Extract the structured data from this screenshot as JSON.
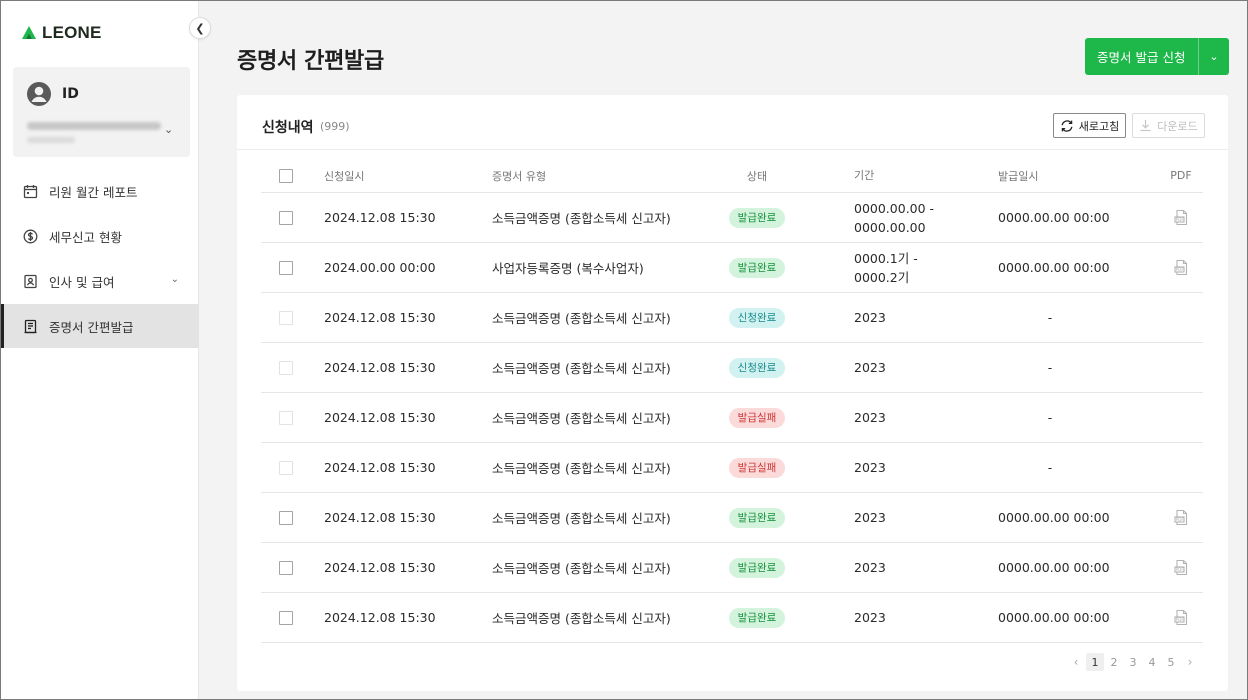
{
  "brand": {
    "name": "LEONE",
    "color": "#1eb74a"
  },
  "user": {
    "id_label": "ID"
  },
  "sidebar": {
    "items": [
      {
        "label": "리원 월간 레포트",
        "icon": "calendar-icon",
        "active": false
      },
      {
        "label": "세무신고 현황",
        "icon": "dollar-circle-icon",
        "active": false
      },
      {
        "label": "인사 및 급여",
        "icon": "id-card-icon",
        "active": false,
        "expandable": true
      },
      {
        "label": "증명서 간편발급",
        "icon": "document-icon",
        "active": true
      }
    ]
  },
  "page": {
    "title": "증명서 간편발급",
    "apply_button": "증명서 발급 신청"
  },
  "card": {
    "title": "신청내역",
    "count": "(999)",
    "refresh_label": "새로고침",
    "download_label": "다운로드"
  },
  "table": {
    "headers": {
      "date": "신청일시",
      "type": "증명서 유형",
      "status": "상태",
      "period": "기간",
      "issued": "발급일시",
      "pdf": "PDF"
    },
    "rows": [
      {
        "date": "2024.12.08 15:30",
        "type": "소득금액증명 (종합소득세 신고자)",
        "status": "발급완료",
        "status_kind": "done",
        "period_1": "0000.00.00 -",
        "period_2": "0000.00.00",
        "issued": "0000.00.00 00:00",
        "pdf": true,
        "checkable": true
      },
      {
        "date": "2024.00.00 00:00",
        "type": "사업자등록증명 (복수사업자)",
        "status": "발급완료",
        "status_kind": "done",
        "period_1": "0000.1기 -",
        "period_2": "0000.2기",
        "issued": "0000.00.00 00:00",
        "pdf": true,
        "checkable": true
      },
      {
        "date": "2024.12.08 15:30",
        "type": "소득금액증명 (종합소득세 신고자)",
        "status": "신청완료",
        "status_kind": "applied",
        "period_1": "2023",
        "period_2": "",
        "issued": "-",
        "pdf": false,
        "checkable": false
      },
      {
        "date": "2024.12.08 15:30",
        "type": "소득금액증명 (종합소득세 신고자)",
        "status": "신청완료",
        "status_kind": "applied",
        "period_1": "2023",
        "period_2": "",
        "issued": "-",
        "pdf": false,
        "checkable": false
      },
      {
        "date": "2024.12.08 15:30",
        "type": "소득금액증명 (종합소득세 신고자)",
        "status": "발급실패",
        "status_kind": "fail",
        "period_1": "2023",
        "period_2": "",
        "issued": "-",
        "pdf": false,
        "checkable": false
      },
      {
        "date": "2024.12.08 15:30",
        "type": "소득금액증명 (종합소득세 신고자)",
        "status": "발급실패",
        "status_kind": "fail",
        "period_1": "2023",
        "period_2": "",
        "issued": "-",
        "pdf": false,
        "checkable": false
      },
      {
        "date": "2024.12.08 15:30",
        "type": "소득금액증명 (종합소득세 신고자)",
        "status": "발급완료",
        "status_kind": "done",
        "period_1": "2023",
        "period_2": "",
        "issued": "0000.00.00 00:00",
        "pdf": true,
        "checkable": true
      },
      {
        "date": "2024.12.08 15:30",
        "type": "소득금액증명 (종합소득세 신고자)",
        "status": "발급완료",
        "status_kind": "done",
        "period_1": "2023",
        "period_2": "",
        "issued": "0000.00.00 00:00",
        "pdf": true,
        "checkable": true
      },
      {
        "date": "2024.12.08 15:30",
        "type": "소득금액증명 (종합소득세 신고자)",
        "status": "발급완료",
        "status_kind": "done",
        "period_1": "2023",
        "period_2": "",
        "issued": "0000.00.00 00:00",
        "pdf": true,
        "checkable": true
      }
    ]
  },
  "pagination": {
    "pages": [
      "1",
      "2",
      "3",
      "4",
      "5"
    ],
    "current": "1"
  }
}
